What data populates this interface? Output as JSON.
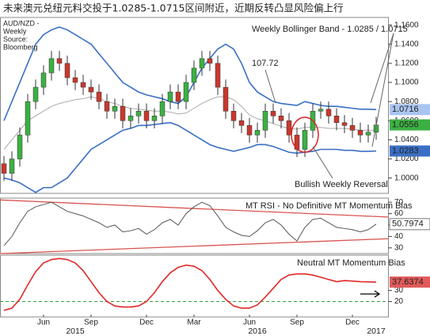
{
  "title": "未来澳元兑纽元料交投于1.0285-1.0715区间附近，近期反转凸显风险偏上行",
  "chart_data": [
    {
      "type": "candlestick",
      "source_lines": [
        "AUD/NZD -",
        "Weekly",
        "Source:",
        "Bloomberg"
      ],
      "annotations": [
        "Weekly Bollinger Band - 1.0285 / 1.0715",
        "107.72",
        "Bullish Weekly Reversal"
      ],
      "categories": [
        null,
        null,
        null,
        null,
        null,
        "Jun",
        null,
        null,
        null,
        null,
        null,
        "Sep",
        null,
        null,
        null,
        null,
        null,
        null,
        "Dec",
        null,
        null,
        null,
        null,
        null,
        "Mar",
        null,
        null,
        null,
        null,
        null,
        null,
        "Jun",
        null,
        null,
        null,
        null,
        null,
        "Sep",
        null,
        null,
        null,
        null,
        null,
        null,
        "Dec",
        null,
        null,
        null
      ],
      "x_years": [
        null,
        null,
        null,
        null,
        null,
        null,
        null,
        null,
        null,
        "2015",
        null,
        null,
        null,
        null,
        null,
        null,
        null,
        null,
        null,
        null,
        null,
        null,
        null,
        null,
        null,
        null,
        null,
        null,
        null,
        null,
        null,
        null,
        "2016",
        null,
        null,
        null,
        null,
        null,
        null,
        null,
        null,
        null,
        null,
        null,
        null,
        null,
        null,
        "2017"
      ],
      "open": [
        1.015,
        1.005,
        1.02,
        1.045,
        1.08,
        1.095,
        1.11,
        1.125,
        1.12,
        1.105,
        1.1,
        1.095,
        1.09,
        1.08,
        1.07,
        1.075,
        1.06,
        1.065,
        1.07,
        1.06,
        1.065,
        1.08,
        1.09,
        1.08,
        1.1,
        1.115,
        1.125,
        1.12,
        1.095,
        1.07,
        1.06,
        1.055,
        1.045,
        1.05,
        1.07,
        1.065,
        1.06,
        1.045,
        1.03,
        1.05,
        1.07,
        1.072,
        1.065,
        1.058,
        1.055,
        1.05,
        1.045,
        1.048
      ],
      "high": [
        1.023,
        1.028,
        1.053,
        1.088,
        1.103,
        1.118,
        1.133,
        1.133,
        1.128,
        1.113,
        1.108,
        1.103,
        1.098,
        1.088,
        1.083,
        1.083,
        1.073,
        1.078,
        1.078,
        1.073,
        1.088,
        1.098,
        1.098,
        1.108,
        1.123,
        1.133,
        1.133,
        1.128,
        1.103,
        1.078,
        1.068,
        1.063,
        1.058,
        1.078,
        1.078,
        1.073,
        1.068,
        1.053,
        1.058,
        1.078,
        1.08,
        1.08,
        1.073,
        1.066,
        1.063,
        1.058,
        1.056,
        1.064
      ],
      "low": [
        0.997,
        0.997,
        1.012,
        1.037,
        1.072,
        1.087,
        1.102,
        1.112,
        1.097,
        1.092,
        1.087,
        1.082,
        1.072,
        1.062,
        1.062,
        1.052,
        1.052,
        1.057,
        1.052,
        1.052,
        1.057,
        1.072,
        1.072,
        1.072,
        1.092,
        1.107,
        1.112,
        1.087,
        1.062,
        1.052,
        1.047,
        1.037,
        1.037,
        1.042,
        1.057,
        1.052,
        1.037,
        1.022,
        1.022,
        1.042,
        1.062,
        1.057,
        1.05,
        1.047,
        1.042,
        1.037,
        1.037,
        1.04
      ],
      "close": [
        1.005,
        1.02,
        1.045,
        1.08,
        1.095,
        1.11,
        1.125,
        1.12,
        1.105,
        1.1,
        1.095,
        1.09,
        1.08,
        1.07,
        1.075,
        1.06,
        1.065,
        1.07,
        1.06,
        1.065,
        1.08,
        1.09,
        1.08,
        1.1,
        1.115,
        1.125,
        1.12,
        1.095,
        1.07,
        1.06,
        1.055,
        1.045,
        1.05,
        1.07,
        1.065,
        1.06,
        1.045,
        1.03,
        1.05,
        1.07,
        1.072,
        1.065,
        1.058,
        1.055,
        1.05,
        1.045,
        1.048,
        1.0556
      ],
      "upper": [
        1.06,
        1.08,
        1.1,
        1.12,
        1.14,
        1.15,
        1.155,
        1.158,
        1.155,
        1.15,
        1.145,
        1.14,
        1.13,
        1.12,
        1.11,
        1.1,
        1.095,
        1.09,
        1.087,
        1.085,
        1.083,
        1.08,
        1.078,
        1.085,
        1.1,
        1.115,
        1.125,
        1.135,
        1.14,
        1.135,
        1.12,
        1.1,
        1.09,
        1.085,
        1.08,
        1.078,
        1.077,
        1.076,
        1.08,
        1.078,
        1.076,
        1.075,
        1.075,
        1.074,
        1.073,
        1.072,
        1.072,
        1.0716
      ],
      "middle": [
        1.03,
        1.04,
        1.05,
        1.06,
        1.065,
        1.07,
        1.075,
        1.078,
        1.08,
        1.082,
        1.083,
        1.085,
        1.083,
        1.08,
        1.078,
        1.075,
        1.073,
        1.072,
        1.071,
        1.07,
        1.07,
        1.069,
        1.067,
        1.068,
        1.073,
        1.078,
        1.082,
        1.085,
        1.085,
        1.082,
        1.075,
        1.066,
        1.062,
        1.06,
        1.057,
        1.054,
        1.052,
        1.051,
        1.053,
        1.053,
        1.053,
        1.052,
        1.052,
        1.052,
        1.051,
        1.05,
        1.05,
        1.05
      ],
      "lower": [
        1.0,
        0.998,
        0.995,
        0.99,
        0.985,
        0.99,
        0.99,
        0.995,
        1.0,
        1.01,
        1.02,
        1.03,
        1.035,
        1.04,
        1.045,
        1.05,
        1.052,
        1.055,
        1.055,
        1.056,
        1.057,
        1.058,
        1.055,
        1.05,
        1.045,
        1.04,
        1.035,
        1.032,
        1.03,
        1.028,
        1.03,
        1.032,
        1.035,
        1.035,
        1.033,
        1.03,
        1.027,
        1.026,
        1.027,
        1.028,
        1.03,
        1.03,
        1.03,
        1.029,
        1.029,
        1.028,
        1.028,
        1.0283
      ],
      "up_color": "#3cb043",
      "down_color": "#c8382d",
      "band_color": "#3a6fc4",
      "middle_color": "#aaaaaa",
      "ylim": [
        0.984,
        1.168
      ],
      "yticks": [
        {
          "value": 1.0,
          "label": "1.0000"
        },
        {
          "value": 1.02,
          "label": "1.0200"
        },
        {
          "value": 1.04,
          "label": "1.0400"
        },
        {
          "value": 1.06,
          "label": "1.0600"
        },
        {
          "value": 1.08,
          "label": "1.0800"
        },
        {
          "value": 1.1,
          "label": "1.1000"
        },
        {
          "value": 1.12,
          "label": "1.1200"
        },
        {
          "value": 1.14,
          "label": "1.1400"
        },
        {
          "value": 1.16,
          "label": "1.1600"
        }
      ]
    },
    {
      "type": "line",
      "label": "MT RSI - No Definitive MT Momentum Bias",
      "values": [
        32,
        40,
        52,
        62,
        66,
        68,
        70,
        66,
        62,
        60,
        58,
        55,
        52,
        48,
        50,
        44,
        45,
        47,
        42,
        46,
        52,
        55,
        50,
        60,
        66,
        70,
        67,
        58,
        48,
        44,
        41,
        40,
        45,
        52,
        55,
        50,
        42,
        36,
        48,
        55,
        56,
        52,
        48,
        47,
        46,
        44,
        46,
        50.7974
      ],
      "color": "#555555",
      "trendlines": [
        [
          72,
          57
        ],
        [
          25,
          38
        ]
      ],
      "trend_color": "#d9534f",
      "ylim": [
        25,
        73.6
      ],
      "yticks": [
        30,
        40,
        50,
        60,
        70
      ]
    },
    {
      "type": "line",
      "label": "Neutral MT Momentum Bias",
      "values": [
        12,
        14,
        22,
        35,
        47,
        55,
        58,
        59,
        58,
        55,
        48,
        38,
        28,
        20,
        16,
        15,
        15,
        16,
        20,
        28,
        38,
        46,
        51,
        53,
        52,
        48,
        40,
        30,
        22,
        16,
        14,
        14,
        17,
        24,
        32,
        40,
        44,
        45,
        45,
        44,
        42,
        40,
        38,
        39,
        38.5,
        38,
        37.8,
        37.6374
      ],
      "color": "#e02828",
      "reference_line": 20,
      "reference_color": "#2e9e3e",
      "ylim": [
        6,
        62
      ],
      "yticks": [
        20,
        30
      ]
    }
  ]
}
